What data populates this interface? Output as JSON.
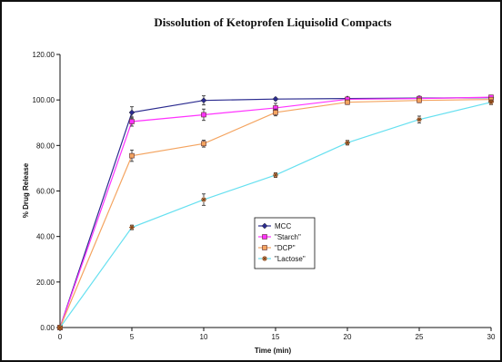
{
  "chart_data": {
    "type": "line",
    "title": "Dissolution of Ketoprofen Liquisolid Compacts",
    "xlabel": "Time (min)",
    "ylabel": "% Drug Release",
    "x": [
      0,
      5,
      10,
      15,
      20,
      25,
      30
    ],
    "xlim": [
      0,
      30
    ],
    "ylim": [
      0,
      120
    ],
    "xticks": [
      "0",
      "5",
      "10",
      "15",
      "20",
      "25",
      "30"
    ],
    "yticks": [
      "0.00",
      "20.00",
      "40.00",
      "60.00",
      "80.00",
      "100.00",
      "120.00"
    ],
    "grid": false,
    "legend_position": "center",
    "error_bars": true,
    "series": [
      {
        "name": "MCC",
        "color": "#2b2b8f",
        "marker": "diamond",
        "values": [
          0,
          94.5,
          99.8,
          100.4,
          100.6,
          100.8,
          101.0
        ],
        "errors": [
          0,
          2.5,
          2.0,
          0.5,
          0.5,
          0.5,
          0.5
        ]
      },
      {
        "name": "\"Starch\"",
        "color": "#ff33ff",
        "marker": "square",
        "values": [
          0,
          90.5,
          93.5,
          96.5,
          100.3,
          100.6,
          101.2
        ],
        "errors": [
          0,
          2.0,
          2.5,
          2.0,
          1.0,
          1.0,
          0.8
        ]
      },
      {
        "name": "\"DCP\"",
        "color": "#f4a460",
        "marker": "square",
        "values": [
          0,
          75.5,
          80.8,
          94.5,
          99.0,
          99.8,
          100.2
        ],
        "errors": [
          0,
          2.5,
          1.5,
          1.5,
          1.0,
          1.0,
          0.8
        ]
      },
      {
        "name": "\"Lactose\"",
        "color": "#66e0f0",
        "marker": "star",
        "values": [
          0,
          44.0,
          56.2,
          67.0,
          81.2,
          91.4,
          99.0
        ],
        "errors": [
          0,
          1.0,
          2.5,
          1.0,
          1.0,
          1.5,
          1.0
        ]
      }
    ]
  }
}
